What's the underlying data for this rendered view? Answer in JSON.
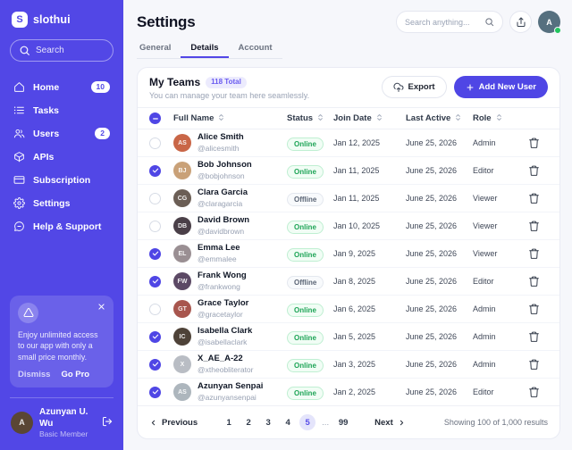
{
  "colors": {
    "sidebar_bg": "#5247E6",
    "accent": "#4F46E5",
    "online_green": "#1DA456",
    "active_page_bg": "#E4E4FB"
  },
  "brand": {
    "name": "slothui",
    "logo_letter": "S"
  },
  "sidebar": {
    "search_placeholder": "Search",
    "nav": [
      {
        "label": "Home",
        "icon": "home-icon",
        "badge": "10"
      },
      {
        "label": "Tasks",
        "icon": "tasks-icon",
        "badge": null
      },
      {
        "label": "Users",
        "icon": "users-icon",
        "badge": "2"
      },
      {
        "label": "APIs",
        "icon": "apis-icon",
        "badge": null
      },
      {
        "label": "Subscription",
        "icon": "subscription-icon",
        "badge": null
      },
      {
        "label": "Settings",
        "icon": "settings-icon",
        "badge": null
      },
      {
        "label": "Help & Support",
        "icon": "help-icon",
        "badge": null
      }
    ],
    "promo": {
      "icon": "warning-triangle-icon",
      "text": "Enjoy unlimited access to our app with only a small price monthly.",
      "dismiss_label": "Dismiss",
      "cta_label": "Go Pro"
    },
    "user": {
      "name": "Azunyan U. Wu",
      "role": "Basic Member",
      "initials": "A",
      "avatar_color": "#5A4634"
    }
  },
  "header": {
    "title": "Settings",
    "search_placeholder": "Search anything...",
    "tabs": [
      {
        "label": "General",
        "active": false
      },
      {
        "label": "Details",
        "active": true
      },
      {
        "label": "Account",
        "active": false
      }
    ],
    "profile": {
      "initials": "A",
      "avatar_color": "#56707F",
      "status": "online"
    }
  },
  "panel": {
    "title": "My Teams",
    "badge": "118 Total",
    "subtitle": "You can manage your team here seamlessly.",
    "export_label": "Export",
    "add_user_label": "Add New User"
  },
  "table": {
    "columns": [
      "Full Name",
      "Status",
      "Join Date",
      "Last Active",
      "Role"
    ],
    "header_checkbox": "indeterminate",
    "rows": [
      {
        "name": "Alice Smith",
        "handle": "@alicesmith",
        "status": "Online",
        "join_date": "Jan 12, 2025",
        "last_active": "June 25, 2026",
        "role": "Admin",
        "checked": false,
        "initials": "AS",
        "avatar_color": "#C96647"
      },
      {
        "name": "Bob Johnson",
        "handle": "@bobjohnson",
        "status": "Online",
        "join_date": "Jan 11, 2025",
        "last_active": "June 25, 2026",
        "role": "Editor",
        "checked": true,
        "initials": "BJ",
        "avatar_color": "#C9A178"
      },
      {
        "name": "Clara Garcia",
        "handle": "@claragarcia",
        "status": "Offline",
        "join_date": "Jan 11, 2025",
        "last_active": "June 25, 2026",
        "role": "Viewer",
        "checked": false,
        "initials": "CG",
        "avatar_color": "#6B5E55"
      },
      {
        "name": "David Brown",
        "handle": "@davidbrown",
        "status": "Online",
        "join_date": "Jan 10, 2025",
        "last_active": "June 25, 2026",
        "role": "Viewer",
        "checked": false,
        "initials": "DB",
        "avatar_color": "#4A3F48"
      },
      {
        "name": "Emma Lee",
        "handle": "@emmalee",
        "status": "Online",
        "join_date": "Jan 9, 2025",
        "last_active": "June 25, 2026",
        "role": "Viewer",
        "checked": true,
        "initials": "EL",
        "avatar_color": "#9A8F93"
      },
      {
        "name": "Frank Wong",
        "handle": "@frankwong",
        "status": "Offline",
        "join_date": "Jan 8, 2025",
        "last_active": "June 25, 2026",
        "role": "Editor",
        "checked": true,
        "initials": "FW",
        "avatar_color": "#5C4965"
      },
      {
        "name": "Grace Taylor",
        "handle": "@gracetaylor",
        "status": "Online",
        "join_date": "Jan 6, 2025",
        "last_active": "June 25, 2026",
        "role": "Admin",
        "checked": false,
        "initials": "GT",
        "avatar_color": "#A8564E"
      },
      {
        "name": "Isabella Clark",
        "handle": "@isabellaclark",
        "status": "Online",
        "join_date": "Jan 5, 2025",
        "last_active": "June 25, 2026",
        "role": "Admin",
        "checked": true,
        "initials": "IC",
        "avatar_color": "#4E4238"
      },
      {
        "name": "X_AE_A-22",
        "handle": "@xtheobliterator",
        "status": "Online",
        "join_date": "Jan 3, 2025",
        "last_active": "June 25, 2026",
        "role": "Admin",
        "checked": true,
        "initials": "X",
        "avatar_color": "#B9BDC4"
      },
      {
        "name": "Azunyan Senpai",
        "handle": "@azunyansenpai",
        "status": "Online",
        "join_date": "Jan 2, 2025",
        "last_active": "June 25, 2026",
        "role": "Editor",
        "checked": true,
        "initials": "AS",
        "avatar_color": "#ADB6BD"
      }
    ]
  },
  "pagination": {
    "previous_label": "Previous",
    "next_label": "Next",
    "pages": [
      "1",
      "2",
      "3",
      "4",
      "5",
      "...",
      "99"
    ],
    "active_page": "5",
    "summary": "Showing 100 of 1,000 results"
  }
}
